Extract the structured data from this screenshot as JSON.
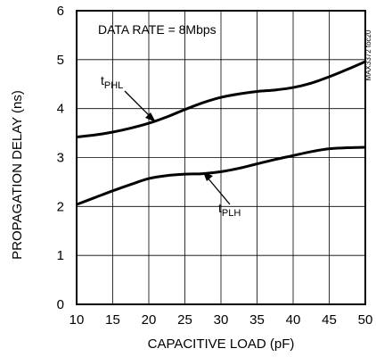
{
  "chart_data": {
    "type": "line",
    "title": "",
    "xlabel": "CAPACITIVE LOAD (pF)",
    "ylabel": "PROPAGATION DELAY (ns)",
    "xlim": [
      10,
      50
    ],
    "ylim": [
      0,
      6
    ],
    "xticks": [
      10,
      15,
      20,
      25,
      30,
      35,
      40,
      45,
      50
    ],
    "yticks": [
      0,
      1,
      2,
      3,
      4,
      5,
      6
    ],
    "grid": true,
    "legend": "none",
    "annotation": "DATA RATE = 8Mbps",
    "figure_code": "MAX3372 toc20",
    "series": [
      {
        "label_main": "t",
        "label_sub": "PHL",
        "x": [
          10,
          12.5,
          15,
          17.5,
          20,
          22.5,
          25,
          27.5,
          30,
          32.5,
          35,
          37.5,
          40,
          42.5,
          45,
          47.5,
          50
        ],
        "y": [
          3.42,
          3.46,
          3.52,
          3.6,
          3.7,
          3.83,
          3.98,
          4.12,
          4.23,
          4.3,
          4.35,
          4.38,
          4.43,
          4.52,
          4.65,
          4.8,
          4.96
        ]
      },
      {
        "label_main": "t",
        "label_sub": "PLH",
        "x": [
          10,
          12.5,
          15,
          17.5,
          20,
          22.5,
          25,
          27.5,
          30,
          32.5,
          35,
          37.5,
          40,
          42.5,
          45,
          47.5,
          50
        ],
        "y": [
          2.04,
          2.18,
          2.32,
          2.45,
          2.57,
          2.63,
          2.66,
          2.67,
          2.71,
          2.78,
          2.87,
          2.96,
          3.04,
          3.12,
          3.18,
          3.2,
          3.21
        ]
      }
    ]
  },
  "colors": {
    "line": "#000000",
    "grid": "#000000",
    "background": "#ffffff"
  }
}
